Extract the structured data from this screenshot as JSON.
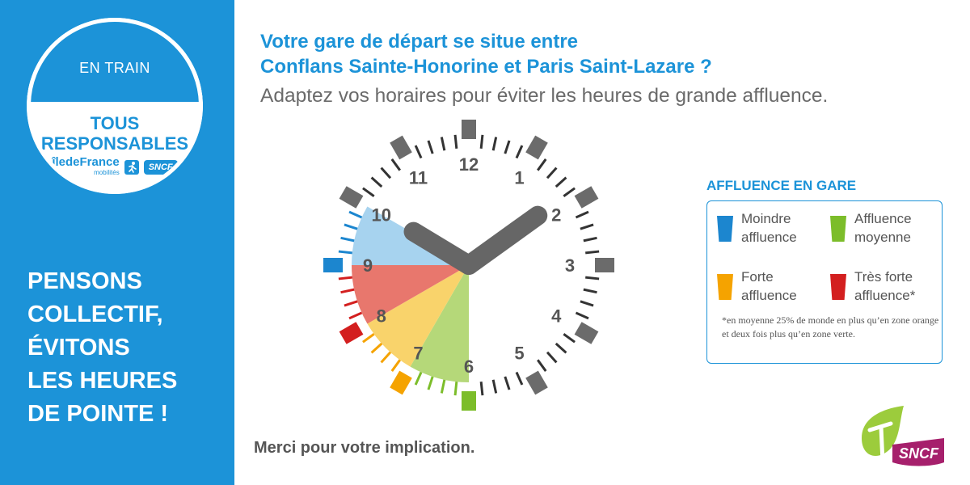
{
  "badge": {
    "top_label": "EN TRAIN",
    "title_line1": "TOUS",
    "title_line2": "RESPONSABLES",
    "idf_logo_main": "îledeFrance",
    "idf_logo_sub": "mobilités",
    "sncf_label": "SNCF"
  },
  "slogan": [
    "PENSONS",
    "COLLECTIF,",
    "ÉVITONS",
    "LES HEURES",
    "DE POINTE !"
  ],
  "headline": {
    "line1": "Votre gare de départ se situe entre",
    "line2": "Conflans Sainte-Honorine et Paris Saint-Lazare ?"
  },
  "subheadline": "Adaptez vos horaires pour éviter les heures de grande affluence.",
  "clock": {
    "numbers": [
      "12",
      "1",
      "2",
      "3",
      "4",
      "5",
      "6",
      "7",
      "8",
      "9",
      "10",
      "11"
    ],
    "hour_hand_points_to": 10,
    "minute_hand_points_to": 2,
    "segments": [
      {
        "from": 6,
        "to": 7,
        "level": "moyenne",
        "color": "#b5d879"
      },
      {
        "from": 7,
        "to": 8,
        "level": "forte",
        "color": "#f9d36b"
      },
      {
        "from": 8,
        "to": 9,
        "level": "tres_forte",
        "color": "#e8776d"
      },
      {
        "from": 9,
        "to": 10,
        "level": "moindre",
        "color": "#a7d3ef"
      }
    ]
  },
  "legend": {
    "title": "AFFLUENCE EN GARE",
    "items": [
      {
        "line1": "Moindre",
        "line2": "affluence",
        "color": "#1c86cf"
      },
      {
        "line1": "Affluence",
        "line2": "moyenne",
        "color": "#7cbd2a"
      },
      {
        "line1": "Forte",
        "line2": "affluence",
        "color": "#f5a300"
      },
      {
        "line1": "Très forte",
        "line2": "affluence*",
        "color": "#d31f1f"
      }
    ],
    "note": "*en moyenne 25% de monde en plus qu’en zone orange et deux fois plus qu’en zone verte."
  },
  "footer": {
    "thanks": "Merci pour votre implication.",
    "sncf_logo": "SNCF"
  },
  "colors": {
    "brand_blue": "#1c93d8",
    "tick_gray": "#6b6b6b"
  }
}
